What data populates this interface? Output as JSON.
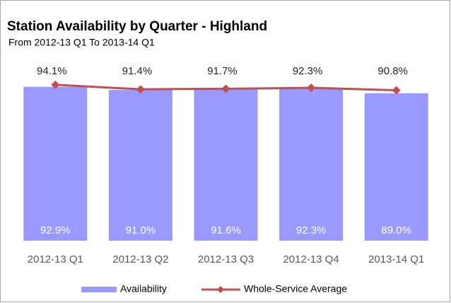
{
  "chart_data": {
    "type": "bar",
    "title": "Station Availability by Quarter - Highland",
    "subtitle": "From 2012-13 Q1 To 2013-14 Q1",
    "categories": [
      "2012-13 Q1",
      "2012-13 Q2",
      "2012-13 Q3",
      "2012-13 Q4",
      "2013-14 Q1"
    ],
    "series": [
      {
        "name": "Availability",
        "type": "bar",
        "color": "#9999ff",
        "values": [
          92.9,
          91.0,
          91.6,
          92.3,
          89.0
        ],
        "value_labels": [
          "92.9%",
          "91.0%",
          "91.6%",
          "92.3%",
          "89.0%"
        ]
      },
      {
        "name": "Whole-Service Average",
        "type": "line",
        "color": "#c0504d",
        "values": [
          94.1,
          91.4,
          91.7,
          92.3,
          90.8
        ],
        "value_labels": [
          "94.1%",
          "91.4%",
          "91.7%",
          "92.3%",
          "90.8%"
        ]
      }
    ],
    "ylim": [
      0,
      100
    ]
  }
}
